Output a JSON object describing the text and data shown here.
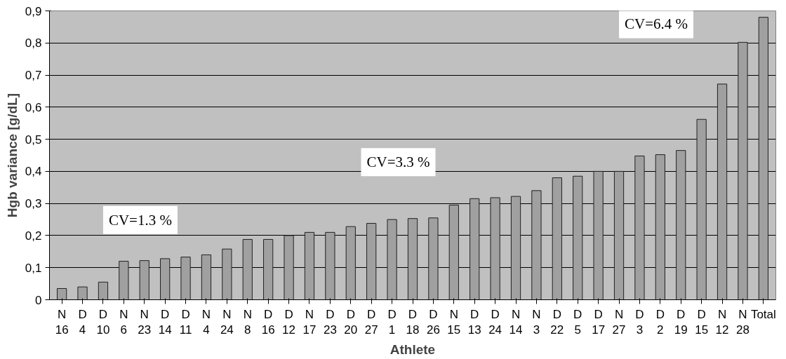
{
  "chart_data": {
    "type": "bar",
    "xlabel": "Athlete",
    "ylabel": "Hgb variance [g/dL]",
    "categories": [
      "N\n16",
      "D\n4",
      "D\n10",
      "N\n6",
      "N\n23",
      "D\n14",
      "D\n11",
      "N\n4",
      "N\n24",
      "N\n8",
      "D\n16",
      "D\n12",
      "N\n17",
      "D\n23",
      "D\n20",
      "D\n27",
      "D\n1",
      "D\n18",
      "D\n26",
      "N\n15",
      "D\n13",
      "D\n24",
      "N\n14",
      "N\n3",
      "D\n22",
      "D\n5",
      "D\n17",
      "N\n27",
      "D\n3",
      "D\n2",
      "D\n19",
      "D\n15",
      "N\n12",
      "N\n28",
      "Total"
    ],
    "values": [
      0.035,
      0.04,
      0.055,
      0.12,
      0.122,
      0.128,
      0.133,
      0.14,
      0.158,
      0.188,
      0.188,
      0.2,
      0.21,
      0.21,
      0.228,
      0.238,
      0.25,
      0.253,
      0.255,
      0.295,
      0.315,
      0.318,
      0.322,
      0.34,
      0.38,
      0.385,
      0.4,
      0.4,
      0.448,
      0.452,
      0.465,
      0.562,
      0.672,
      0.802,
      0.88
    ],
    "color": "#a0a0a0",
    "ylim": [
      0,
      0.9
    ],
    "yticks": [
      {
        "value": 0,
        "label": "0"
      },
      {
        "value": 0.1,
        "label": "0,1"
      },
      {
        "value": 0.2,
        "label": "0,2"
      },
      {
        "value": 0.3,
        "label": "0,3"
      },
      {
        "value": 0.4,
        "label": "0,4"
      },
      {
        "value": 0.5,
        "label": "0,5"
      },
      {
        "value": 0.6,
        "label": "0,6"
      },
      {
        "value": 0.7,
        "label": "0,7"
      },
      {
        "value": 0.8,
        "label": "0,8"
      },
      {
        "value": 0.9,
        "label": "0,9"
      }
    ],
    "grid": "y",
    "annotations": [
      "CV=1.3 %",
      "CV=3.3 %",
      "CV=6.4 %"
    ]
  }
}
